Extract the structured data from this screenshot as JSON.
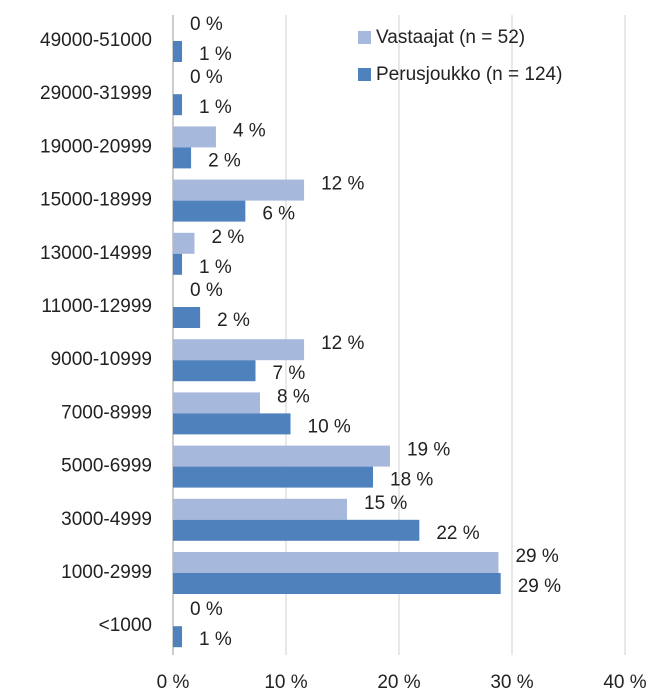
{
  "chart_data": {
    "type": "hbar",
    "categories": [
      "49000-51000",
      "29000-31999",
      "19000-20999",
      "15000-18999",
      "13000-14999",
      "11000-12999",
      "9000-10999",
      "7000-8999",
      "5000-6999",
      "3000-4999",
      "1000-2999",
      "<1000"
    ],
    "series": [
      {
        "name": "Vastaajat (n = 52)",
        "color": "#a6b9dd",
        "values": [
          0,
          0,
          3.8,
          11.6,
          1.9,
          0,
          11.6,
          7.7,
          19.2,
          15.4,
          28.8,
          0
        ],
        "value_labels": [
          "0 %",
          "0 %",
          "4 %",
          "12 %",
          "2 %",
          "0 %",
          "12 %",
          "8 %",
          "19 %",
          "15 %",
          "29 %",
          "0 %"
        ]
      },
      {
        "name": "Perusjoukko (n = 124)",
        "color": "#4f81bd",
        "values": [
          0.8,
          0.8,
          1.6,
          6.4,
          0.8,
          2.4,
          7.3,
          10.4,
          17.7,
          21.8,
          29.0,
          0.8
        ],
        "value_labels": [
          "1 %",
          "1 %",
          "2 %",
          "6 %",
          "1 %",
          "2 %",
          "7 %",
          "10 %",
          "18 %",
          "22 %",
          "29 %",
          "1 %"
        ]
      }
    ],
    "xlim": [
      0,
      40
    ],
    "xticks": [
      {
        "value": 0,
        "label": "0 %"
      },
      {
        "value": 10,
        "label": "10 %"
      },
      {
        "value": 20,
        "label": "20 %"
      },
      {
        "value": 30,
        "label": "30 %"
      },
      {
        "value": 40,
        "label": "40 %"
      }
    ],
    "grid": true,
    "legend": "top-right"
  }
}
